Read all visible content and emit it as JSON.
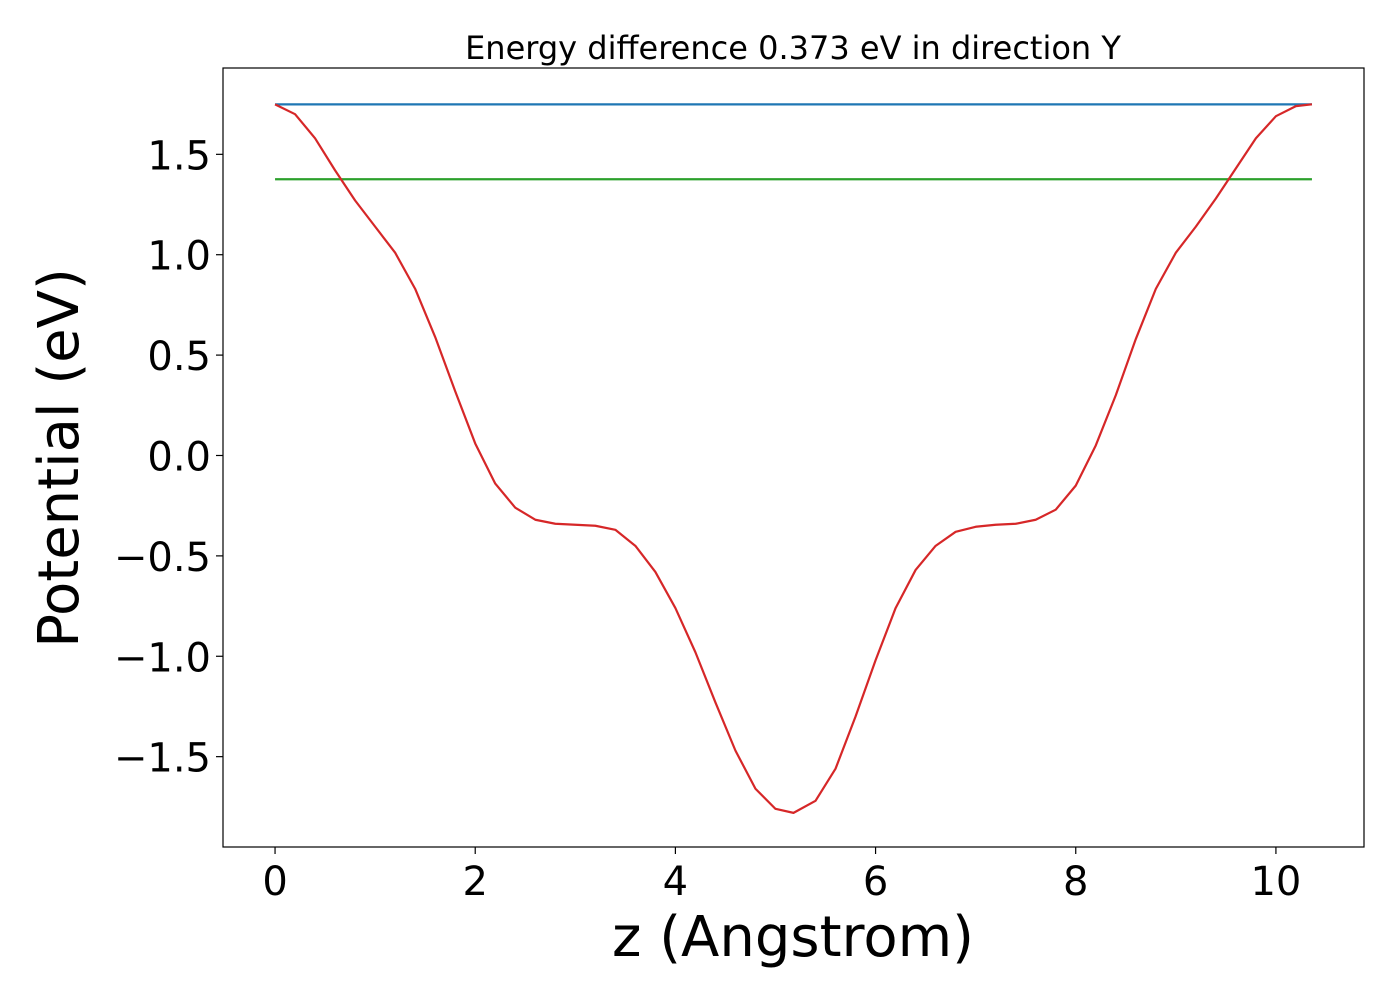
{
  "chart_data": {
    "type": "line",
    "title": "Energy difference 0.373 eV in direction Y",
    "xlabel": "z (Angstrom)",
    "ylabel": "Potential (eV)",
    "xlim": [
      -0.52,
      10.88
    ],
    "ylim": [
      -1.95,
      1.93
    ],
    "grid": false,
    "legend": "none",
    "x_ticks": [
      {
        "value": 0,
        "label": "0"
      },
      {
        "value": 2,
        "label": "2"
      },
      {
        "value": 4,
        "label": "4"
      },
      {
        "value": 6,
        "label": "6"
      },
      {
        "value": 8,
        "label": "8"
      },
      {
        "value": 10,
        "label": "10"
      }
    ],
    "y_ticks": [
      {
        "value": 1.5,
        "label": "1.5"
      },
      {
        "value": 1.0,
        "label": "1.0"
      },
      {
        "value": 0.5,
        "label": "0.5"
      },
      {
        "value": 0.0,
        "label": "0.0"
      },
      {
        "value": -0.5,
        "label": "−0.5"
      },
      {
        "value": -1.0,
        "label": "−1.0"
      },
      {
        "value": -1.5,
        "label": "−1.5"
      }
    ],
    "series": [
      {
        "color": "#1f77b4",
        "x": [
          0,
          10.36
        ],
        "y": [
          1.749,
          1.749
        ]
      },
      {
        "color": "#2ca02c",
        "x": [
          0,
          10.36
        ],
        "y": [
          1.376,
          1.376
        ]
      },
      {
        "color": "#d62728",
        "x": [
          0,
          0.2,
          0.4,
          0.6,
          0.8,
          1.0,
          1.2,
          1.4,
          1.6,
          1.8,
          2.0,
          2.2,
          2.4,
          2.6,
          2.8,
          3.0,
          3.2,
          3.4,
          3.6,
          3.8,
          4.0,
          4.2,
          4.4,
          4.6,
          4.8,
          5.0,
          5.18,
          5.4,
          5.6,
          5.8,
          6.0,
          6.2,
          6.4,
          6.6,
          6.8,
          7.0,
          7.2,
          7.4,
          7.6,
          7.8,
          8.0,
          8.2,
          8.4,
          8.6,
          8.8,
          9.0,
          9.2,
          9.4,
          9.6,
          9.8,
          10.0,
          10.2,
          10.36
        ],
        "y": [
          1.749,
          1.7,
          1.58,
          1.42,
          1.27,
          1.14,
          1.01,
          0.83,
          0.59,
          0.32,
          0.06,
          -0.14,
          -0.26,
          -0.32,
          -0.34,
          -0.345,
          -0.35,
          -0.37,
          -0.45,
          -0.58,
          -0.76,
          -0.98,
          -1.23,
          -1.47,
          -1.66,
          -1.76,
          -1.78,
          -1.72,
          -1.56,
          -1.3,
          -1.02,
          -0.76,
          -0.57,
          -0.45,
          -0.38,
          -0.355,
          -0.345,
          -0.34,
          -0.32,
          -0.27,
          -0.15,
          0.05,
          0.3,
          0.58,
          0.83,
          1.01,
          1.14,
          1.28,
          1.43,
          1.58,
          1.69,
          1.74,
          1.749
        ]
      }
    ]
  }
}
